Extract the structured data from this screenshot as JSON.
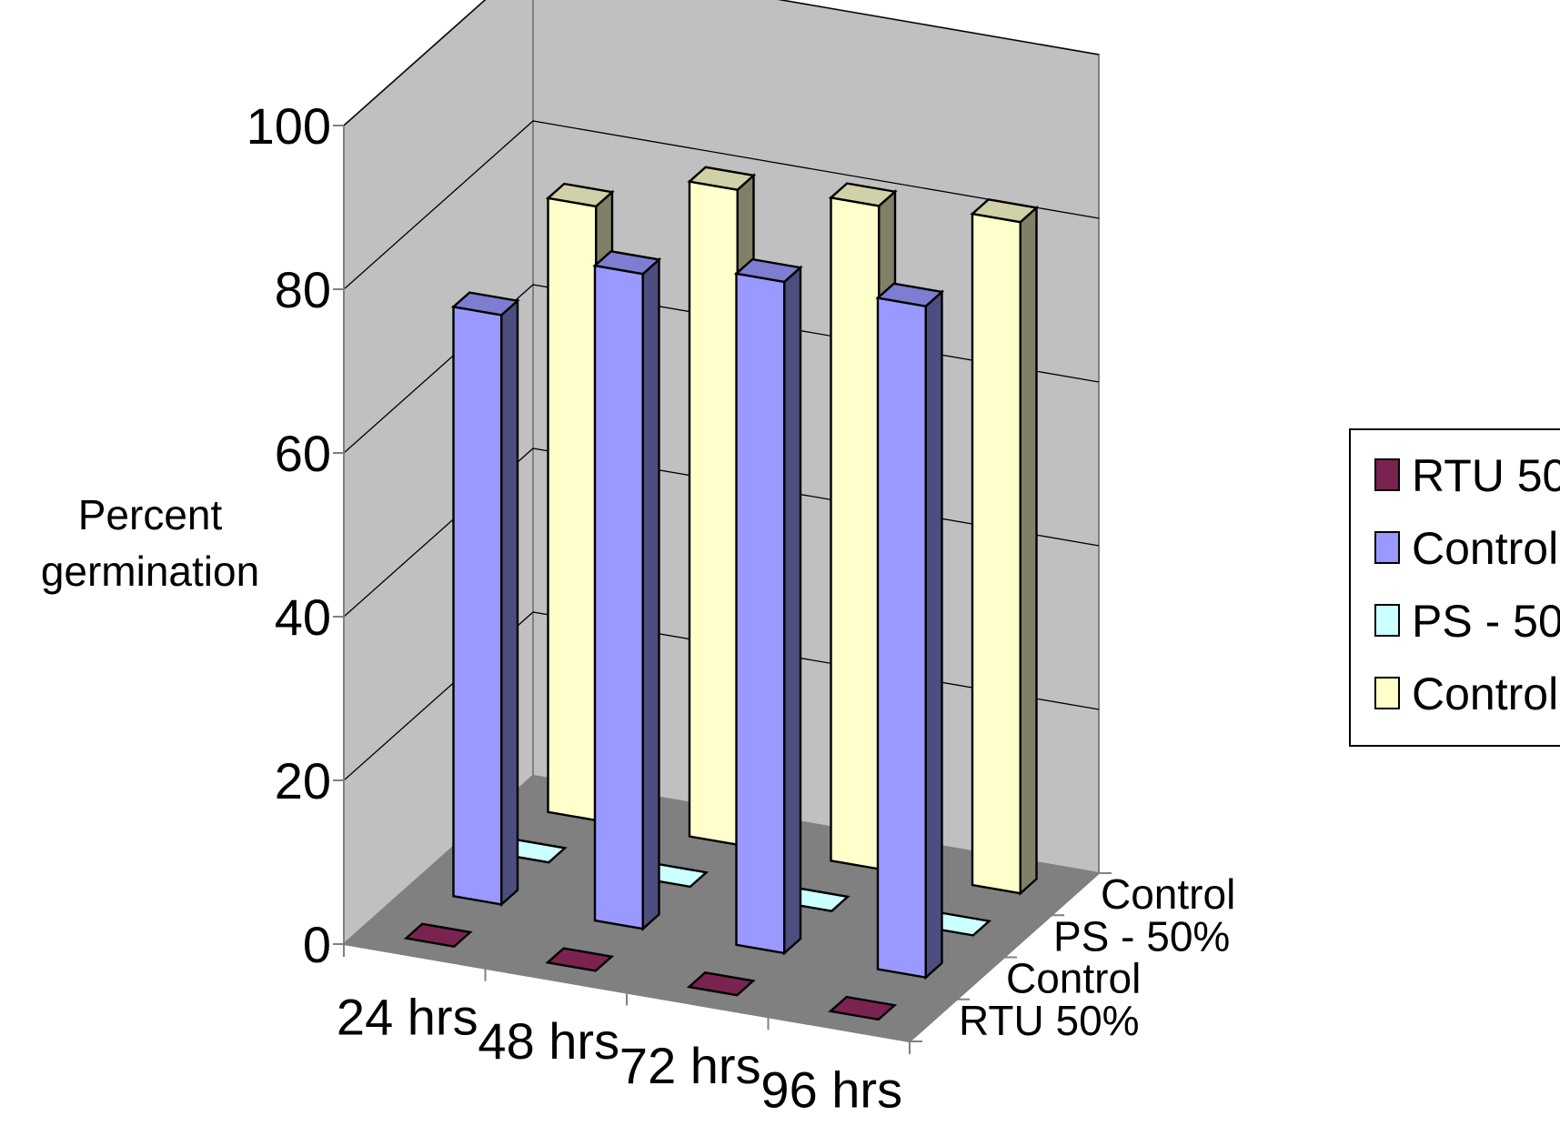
{
  "chart_data": {
    "type": "bar",
    "style": "3d-clustered-depth",
    "categories": [
      "24 hrs",
      "48 hrs",
      "72 hrs",
      "96 hrs"
    ],
    "series": [
      {
        "name": "RTU 50%",
        "values": [
          0,
          0,
          0,
          0
        ],
        "color": "#7a2350"
      },
      {
        "name": "Control",
        "values": [
          72,
          80,
          82,
          82
        ],
        "color": "#9999ff"
      },
      {
        "name": "PS - 50%",
        "values": [
          0,
          0,
          0,
          0
        ],
        "color": "#ccffff"
      },
      {
        "name": "Control",
        "values": [
          75,
          80,
          81,
          82
        ],
        "color": "#ffffcc"
      }
    ],
    "ylabel_lines": [
      "Percent",
      "germination"
    ],
    "xlabel": "",
    "ylim": [
      0,
      100
    ],
    "yticks": [
      0,
      20,
      40,
      60,
      80,
      100
    ],
    "grid": true,
    "legend_position": "right",
    "wall_color": "#c0c0c0",
    "floor_color": "#808080"
  }
}
